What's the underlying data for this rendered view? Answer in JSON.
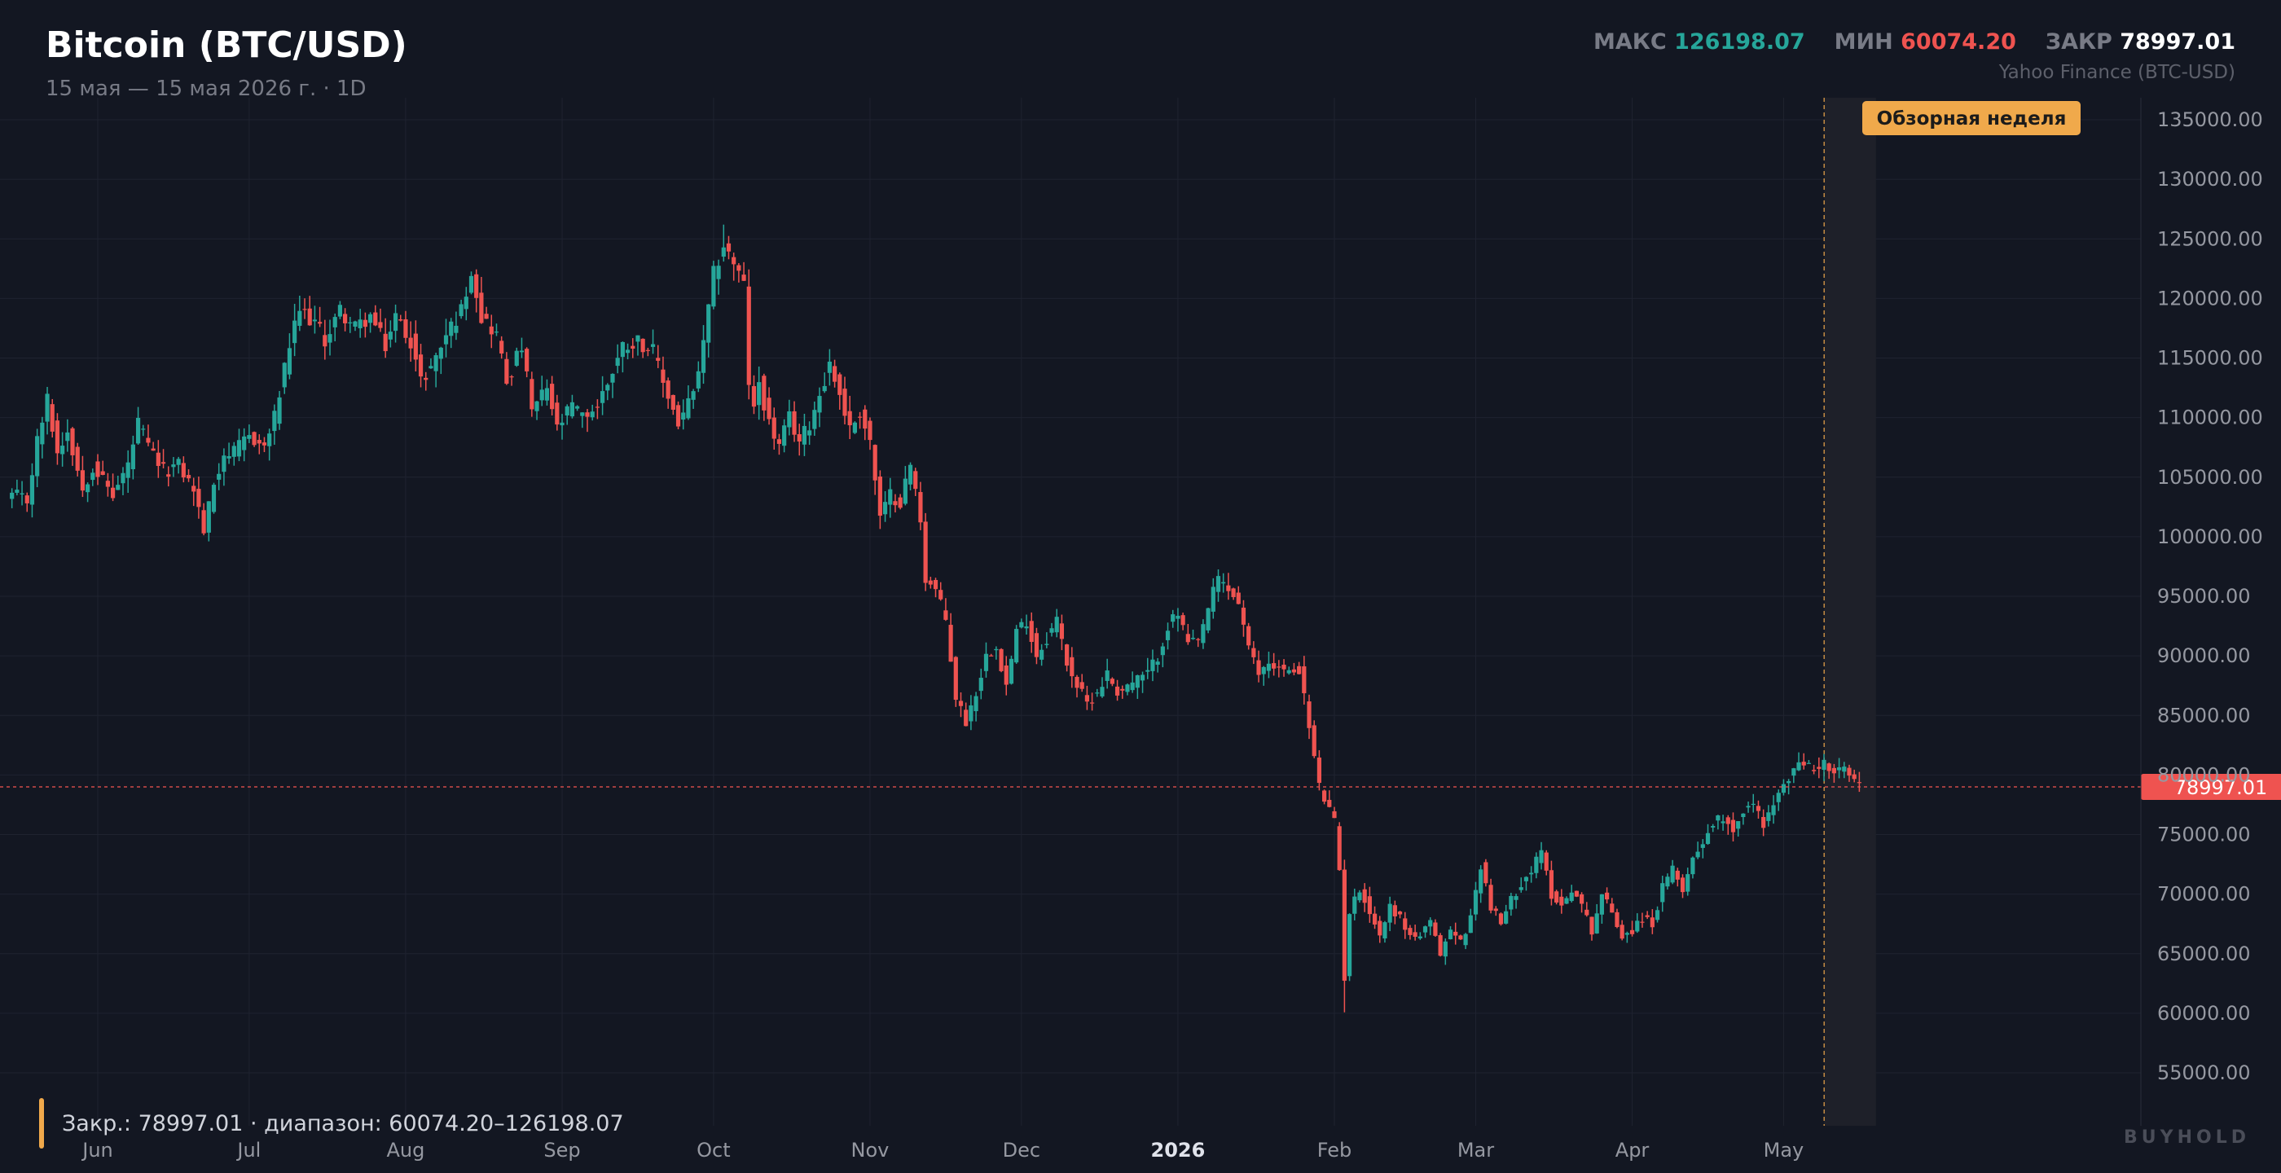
{
  "header": {
    "title": "Bitcoin (BTC/USD)",
    "subtitle": "15 мая — 15 мая 2026 г. · 1D",
    "max_label": "МАКС",
    "max_value": "126198.07",
    "min_label": "МИН",
    "min_value": "60074.20",
    "close_label": "ЗАКР",
    "close_value": "78997.01",
    "source": "Yahoo Finance (BTC-USD)"
  },
  "footer": {
    "summary": "Закр.: 78997.01 · диапазон: 60074.20–126198.07",
    "brand": "BUYHOLD"
  },
  "colors": {
    "up": "#26a69a",
    "down": "#ef5350",
    "highlight": "#f0a94b",
    "background": "#131722",
    "grid": "#1f2330"
  },
  "chart_data": {
    "type": "candlestick",
    "ylim": [
      52000,
      137000
    ],
    "y_ticks": [
      "55000.00",
      "60000.00",
      "65000.00",
      "70000.00",
      "75000.00",
      "80000.00",
      "85000.00",
      "90000.00",
      "95000.00",
      "100000.00",
      "105000.00",
      "110000.00",
      "115000.00",
      "120000.00",
      "125000.00",
      "130000.00",
      "135000.00"
    ],
    "x_ticks": [
      {
        "label": "Jun",
        "day": 17
      },
      {
        "label": "Jul",
        "day": 47
      },
      {
        "label": "Aug",
        "day": 78
      },
      {
        "label": "Sep",
        "day": 109
      },
      {
        "label": "Oct",
        "day": 139
      },
      {
        "label": "Nov",
        "day": 170
      },
      {
        "label": "Dec",
        "day": 200
      },
      {
        "label": "2026",
        "day": 231,
        "bold": true
      },
      {
        "label": "Feb",
        "day": 262
      },
      {
        "label": "Mar",
        "day": 290
      },
      {
        "label": "Apr",
        "day": 321
      },
      {
        "label": "May",
        "day": 351
      }
    ],
    "last_price": 78997.01,
    "last_price_label": "78997.01",
    "annotation": {
      "label": "Обзорная неделя",
      "from_day": 360,
      "to_day": 368
    },
    "anchors": [
      [
        0,
        103500
      ],
      [
        3,
        103000
      ],
      [
        5,
        108000
      ],
      [
        7,
        111500
      ],
      [
        9,
        107000
      ],
      [
        11,
        109000
      ],
      [
        14,
        104000
      ],
      [
        16,
        106000
      ],
      [
        20,
        103500
      ],
      [
        23,
        106000
      ],
      [
        25,
        109500
      ],
      [
        27,
        107500
      ],
      [
        30,
        105500
      ],
      [
        33,
        106000
      ],
      [
        36,
        104000
      ],
      [
        38,
        100500
      ],
      [
        40,
        104500
      ],
      [
        42,
        107000
      ],
      [
        44,
        107000
      ],
      [
        47,
        108500
      ],
      [
        50,
        107500
      ],
      [
        52,
        110000
      ],
      [
        55,
        116000
      ],
      [
        57,
        119000
      ],
      [
        60,
        118000
      ],
      [
        62,
        116500
      ],
      [
        65,
        119000
      ],
      [
        68,
        117500
      ],
      [
        71,
        118500
      ],
      [
        74,
        116000
      ],
      [
        76,
        118500
      ],
      [
        79,
        116500
      ],
      [
        81,
        113000
      ],
      [
        84,
        115000
      ],
      [
        86,
        117000
      ],
      [
        89,
        119000
      ],
      [
        91,
        122500
      ],
      [
        93,
        118500
      ],
      [
        96,
        117000
      ],
      [
        98,
        113000
      ],
      [
        101,
        116000
      ],
      [
        103,
        110500
      ],
      [
        106,
        112500
      ],
      [
        108,
        109000
      ],
      [
        111,
        111000
      ],
      [
        113,
        110000
      ],
      [
        116,
        111000
      ],
      [
        118,
        113000
      ],
      [
        121,
        116000
      ],
      [
        124,
        116500
      ],
      [
        127,
        115500
      ],
      [
        129,
        113000
      ],
      [
        132,
        109500
      ],
      [
        135,
        112000
      ],
      [
        137,
        116000
      ],
      [
        139,
        122000
      ],
      [
        141,
        124500
      ],
      [
        143,
        123000
      ],
      [
        145,
        121000
      ],
      [
        146,
        113000
      ],
      [
        147,
        110500
      ],
      [
        148,
        113000
      ],
      [
        150,
        109500
      ],
      [
        152,
        107500
      ],
      [
        154,
        110000
      ],
      [
        156,
        108000
      ],
      [
        158,
        109500
      ],
      [
        160,
        112000
      ],
      [
        162,
        114500
      ],
      [
        164,
        112000
      ],
      [
        166,
        109000
      ],
      [
        168,
        110500
      ],
      [
        170,
        108000
      ],
      [
        172,
        101500
      ],
      [
        174,
        103500
      ],
      [
        176,
        103000
      ],
      [
        178,
        106000
      ],
      [
        180,
        101500
      ],
      [
        181,
        96500
      ],
      [
        183,
        95500
      ],
      [
        185,
        93000
      ],
      [
        187,
        86500
      ],
      [
        189,
        84500
      ],
      [
        191,
        87000
      ],
      [
        193,
        90000
      ],
      [
        195,
        91000
      ],
      [
        197,
        87500
      ],
      [
        199,
        92000
      ],
      [
        201,
        93000
      ],
      [
        203,
        90000
      ],
      [
        205,
        91500
      ],
      [
        207,
        93000
      ],
      [
        209,
        89500
      ],
      [
        211,
        87500
      ],
      [
        213,
        86000
      ],
      [
        215,
        87000
      ],
      [
        217,
        88500
      ],
      [
        219,
        87000
      ],
      [
        221,
        87500
      ],
      [
        223,
        88000
      ],
      [
        225,
        88500
      ],
      [
        227,
        90000
      ],
      [
        229,
        92500
      ],
      [
        231,
        93500
      ],
      [
        233,
        91000
      ],
      [
        235,
        91000
      ],
      [
        237,
        94000
      ],
      [
        239,
        96500
      ],
      [
        241,
        95500
      ],
      [
        243,
        94500
      ],
      [
        245,
        90500
      ],
      [
        247,
        88500
      ],
      [
        249,
        89500
      ],
      [
        251,
        89000
      ],
      [
        253,
        88500
      ],
      [
        255,
        89000
      ],
      [
        257,
        84000
      ],
      [
        259,
        79000
      ],
      [
        261,
        77000
      ],
      [
        262,
        76000
      ],
      [
        263,
        72000
      ],
      [
        264,
        63000
      ],
      [
        265,
        68500
      ],
      [
        267,
        70500
      ],
      [
        269,
        68500
      ],
      [
        271,
        66500
      ],
      [
        273,
        69000
      ],
      [
        275,
        68000
      ],
      [
        277,
        66500
      ],
      [
        279,
        66500
      ],
      [
        281,
        67500
      ],
      [
        283,
        65000
      ],
      [
        285,
        67000
      ],
      [
        287,
        66000
      ],
      [
        289,
        68000
      ],
      [
        291,
        72500
      ],
      [
        293,
        69000
      ],
      [
        295,
        67500
      ],
      [
        297,
        69500
      ],
      [
        299,
        71000
      ],
      [
        301,
        72000
      ],
      [
        303,
        73500
      ],
      [
        305,
        70000
      ],
      [
        307,
        69000
      ],
      [
        309,
        70500
      ],
      [
        311,
        69000
      ],
      [
        313,
        67000
      ],
      [
        315,
        70000
      ],
      [
        317,
        68500
      ],
      [
        319,
        66500
      ],
      [
        321,
        67000
      ],
      [
        323,
        68000
      ],
      [
        325,
        67500
      ],
      [
        327,
        70500
      ],
      [
        329,
        72000
      ],
      [
        331,
        70500
      ],
      [
        333,
        73000
      ],
      [
        335,
        74500
      ],
      [
        337,
        76000
      ],
      [
        339,
        76500
      ],
      [
        341,
        75500
      ],
      [
        343,
        77000
      ],
      [
        345,
        77500
      ],
      [
        347,
        76000
      ],
      [
        349,
        77500
      ],
      [
        351,
        79000
      ],
      [
        353,
        80500
      ],
      [
        355,
        81000
      ],
      [
        357,
        80500
      ],
      [
        359,
        81000
      ],
      [
        361,
        80000
      ],
      [
        363,
        80500
      ],
      [
        365,
        79500
      ],
      [
        366,
        78997.01
      ]
    ],
    "extremes": [
      {
        "day": 141,
        "high": 126198.07
      },
      {
        "day": 264,
        "low": 60074.2
      }
    ]
  }
}
